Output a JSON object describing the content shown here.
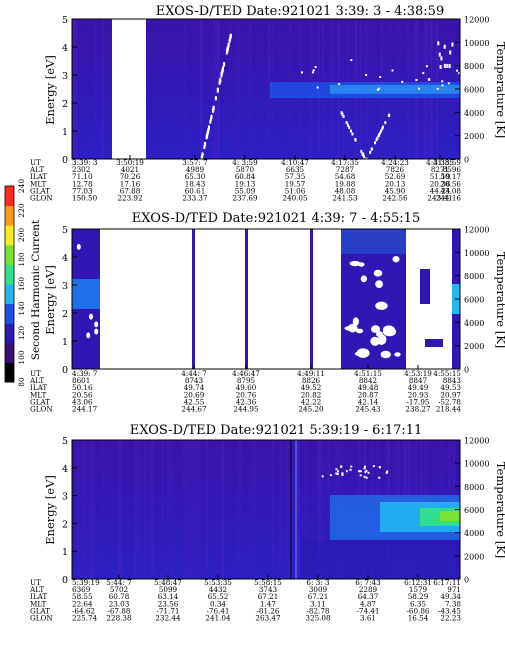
{
  "chart_data": [
    {
      "type": "heatmap",
      "title": "EXOS-D/TED   Date:921021  3:39: 3 - 4:38:59",
      "ylabel": "Energy [eV]",
      "y2label": "Temperature [K]",
      "ylim": [
        0,
        5
      ],
      "y2lim": [
        0,
        12000
      ],
      "yticks": [
        "0",
        "1",
        "2",
        "3",
        "4",
        "5"
      ],
      "y2ticks": [
        "0",
        "2000",
        "4000",
        "6000",
        "8000",
        "10000",
        "12000"
      ],
      "columns": [
        {
          "UT": "3:39: 3",
          "ALT": "2302",
          "ILAT": "71.10",
          "MLT": "12.78",
          "GLAT": "77.03",
          "GLON": "150.50"
        },
        {
          "UT": "3:50:19",
          "ALT": "4021",
          "ILAT": "70.26",
          "MLT": "17.16",
          "GLAT": "67.88",
          "GLON": "223.92"
        },
        {
          "UT": "3:57: 7",
          "ALT": "4989",
          "ILAT": "65.30",
          "MLT": "18.43",
          "GLAT": "60.61",
          "GLON": "233.37"
        },
        {
          "UT": "4: 3:59",
          "ALT": "5870",
          "ILAT": "60.84",
          "MLT": "19.13",
          "GLAT": "55.09",
          "GLON": "237.69"
        },
        {
          "UT": "4:10:47",
          "ALT": "6635",
          "ILAT": "57.35",
          "MLT": "19.57",
          "GLAT": "51.06",
          "GLON": "240.05"
        },
        {
          "UT": "4:17:35",
          "ALT": "7287",
          "ILAT": "54.68",
          "MLT": "19.88",
          "GLAT": "48.08",
          "GLON": "241.53"
        },
        {
          "UT": "4:24:23",
          "ALT": "7826",
          "ILAT": "52.69",
          "MLT": "20.13",
          "GLAT": "45.90",
          "GLON": "242.56"
        },
        {
          "UT": "4:31:35",
          "ALT": "8271",
          "ILAT": "51.19",
          "MLT": "20.36",
          "GLAT": "44.24",
          "GLON": "243.41"
        },
        {
          "UT": "4:38:59",
          "ALT": "8596",
          "ILAT": "50.17",
          "MLT": "20.56",
          "GLAT": "43.08",
          "GLON": "244.16"
        }
      ]
    },
    {
      "type": "heatmap",
      "title": "EXOS-D/TED   Date:921021  4:39: 7 - 4:55:15",
      "ylabel": "Energy [eV]",
      "y2label": "Temperature [K]",
      "ylim": [
        0,
        5
      ],
      "y2lim": [
        0,
        12000
      ],
      "yticks": [
        "0",
        "1",
        "2",
        "3",
        "4",
        "5"
      ],
      "y2ticks": [
        "0",
        "2000",
        "4000",
        "6000",
        "8000",
        "10000",
        "12000"
      ],
      "columns": [
        {
          "UT": "4:39: 7",
          "ALT": "8601",
          "ILAT": "50.16",
          "MLT": "20.56",
          "GLAT": "43.06",
          "GLON": "244.17"
        },
        {
          "UT": "4:44: 7",
          "ALT": "8743",
          "ILAT": "49.74",
          "MLT": "20.69",
          "GLAT": "42.55",
          "GLON": "244.67"
        },
        {
          "UT": "4:46:47",
          "ALT": "8795",
          "ILAT": "49.60",
          "MLT": "20.76",
          "GLAT": "42.36",
          "GLON": "244.95"
        },
        {
          "UT": "4:49:11",
          "ALT": "8826",
          "ILAT": "49.52",
          "MLT": "20.82",
          "GLAT": "42.22",
          "GLON": "245.20"
        },
        {
          "UT": "4:51:15",
          "ALT": "8842",
          "ILAT": "49.48",
          "MLT": "20.87",
          "GLAT": "42.14",
          "GLON": "245.43"
        },
        {
          "UT": "4:53:19",
          "ALT": "8847",
          "ILAT": "49.49",
          "MLT": "20.93",
          "GLAT": "-17.95",
          "GLON": "238.27"
        },
        {
          "UT": "4:55:15",
          "ALT": "8843",
          "ILAT": "49.53",
          "MLT": "20.97",
          "GLAT": "-52.78",
          "GLON": "218.44"
        }
      ]
    },
    {
      "type": "heatmap",
      "title": "EXOS-D/TED   Date:921021  5:39:19 - 6:17:11",
      "ylabel": "Energy [eV]",
      "y2label": "Temperature [K]",
      "ylim": [
        0,
        5
      ],
      "y2lim": [
        0,
        12000
      ],
      "yticks": [
        "0",
        "1",
        "2",
        "3",
        "4",
        "5"
      ],
      "y2ticks": [
        "0",
        "2000",
        "4000",
        "6000",
        "8000",
        "10000",
        "12000"
      ],
      "columns": [
        {
          "UT": "5:39:19",
          "ALT": "6369",
          "ILAT": "58.55",
          "MLT": "22.64",
          "GLAT": "-64.62",
          "GLON": "225.74"
        },
        {
          "UT": "5:44: 7",
          "ALT": "5702",
          "ILAT": "60.78",
          "MLT": "23.03",
          "GLAT": "-67.88",
          "GLON": "228.38"
        },
        {
          "UT": "5:48:47",
          "ALT": "5099",
          "ILAT": "63.14",
          "MLT": "23.56",
          "GLAT": "-71.71",
          "GLON": "232.44"
        },
        {
          "UT": "5:53:35",
          "ALT": "4432",
          "ILAT": "65.52",
          "MLT": "0.34",
          "GLAT": "-76.41",
          "GLON": "241.04"
        },
        {
          "UT": "5:58:15",
          "ALT": "3743",
          "ILAT": "67.21",
          "MLT": "1.47",
          "GLAT": "-81.26",
          "GLON": "263.47"
        },
        {
          "UT": "6: 3: 3",
          "ALT": "3009",
          "ILAT": "67.21",
          "MLT": "3.11",
          "GLAT": "-82.78",
          "GLON": "325.08"
        },
        {
          "UT": "6: 7:43",
          "ALT": "2289",
          "ILAT": "64.37",
          "MLT": "4.87",
          "GLAT": "-74.41",
          "GLON": "3.61"
        },
        {
          "UT": "6:12:31",
          "ALT": "1579",
          "ILAT": "58.29",
          "MLT": "6.35",
          "GLAT": "-60.86",
          "GLON": "16.54"
        },
        {
          "UT": "6:17:11",
          "ALT": "971",
          "ILAT": "49.34",
          "MLT": "7.38",
          "GLAT": "-43.45",
          "GLON": "22.23"
        }
      ]
    }
  ],
  "row_labels": [
    "UT",
    "ALT",
    "ILAT",
    "MLT",
    "GLAT",
    "GLON"
  ],
  "colorbar": {
    "label": "Second Harmonic Current",
    "ticks": [
      "80",
      "100",
      "120",
      "140",
      "160",
      "180",
      "200",
      "220",
      "240"
    ],
    "colors": [
      "#000000",
      "#3a0d73",
      "#2a1ab0",
      "#1e4fe6",
      "#23b5ee",
      "#32e08a",
      "#7be233",
      "#f0f023",
      "#ff9a1a",
      "#ff2a1a"
    ]
  }
}
